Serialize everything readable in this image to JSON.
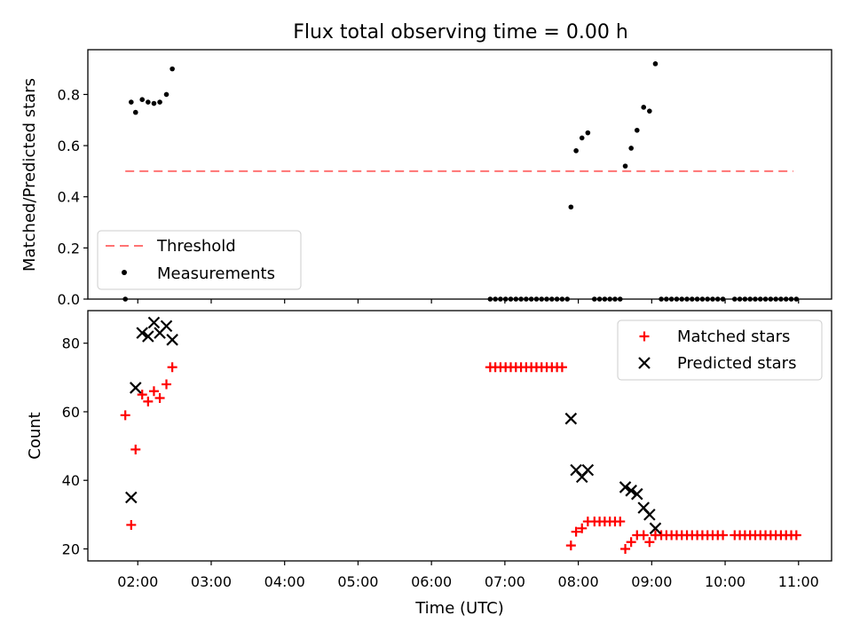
{
  "chart_data": {
    "title": "Flux total observing time = 0.00 h",
    "xlabel": "Time (UTC)",
    "x_unit": "hours (UTC)",
    "xlim": [
      1.32,
      11.45
    ],
    "xticks": [
      {
        "v": 2,
        "label": "02:00"
      },
      {
        "v": 3,
        "label": "03:00"
      },
      {
        "v": 4,
        "label": "04:00"
      },
      {
        "v": 5,
        "label": "05:00"
      },
      {
        "v": 6,
        "label": "06:00"
      },
      {
        "v": 7,
        "label": "07:00"
      },
      {
        "v": 8,
        "label": "08:00"
      },
      {
        "v": 9,
        "label": "09:00"
      },
      {
        "v": 10,
        "label": "10:00"
      },
      {
        "v": 11,
        "label": "11:00"
      }
    ],
    "panels": [
      {
        "type": "scatter",
        "ylabel": "Matched/Predicted stars",
        "ylim": [
          0,
          0.975
        ],
        "yticks": [
          {
            "v": 0,
            "label": "0.0"
          },
          {
            "v": 0.2,
            "label": "0.2"
          },
          {
            "v": 0.4,
            "label": "0.4"
          },
          {
            "v": 0.6,
            "label": "0.6"
          },
          {
            "v": 0.8,
            "label": "0.8"
          }
        ],
        "legend_position": "lower-left",
        "threshold": {
          "name": "Threshold",
          "value": 0.5,
          "x_range": [
            1.83,
            10.93
          ],
          "color": "#ff7373"
        },
        "measurements": {
          "name": "Measurements",
          "color": "#000000",
          "points": [
            [
              1.83,
              0.0
            ],
            [
              1.91,
              0.77
            ],
            [
              1.97,
              0.73
            ],
            [
              2.06,
              0.78
            ],
            [
              2.14,
              0.77
            ],
            [
              2.22,
              0.765
            ],
            [
              2.3,
              0.77
            ],
            [
              2.39,
              0.8
            ],
            [
              2.47,
              0.9
            ],
            [
              6.8,
              0.0
            ],
            [
              6.87,
              0.0
            ],
            [
              6.94,
              0.0
            ],
            [
              7.01,
              0.0
            ],
            [
              7.08,
              0.0
            ],
            [
              7.15,
              0.0
            ],
            [
              7.22,
              0.0
            ],
            [
              7.29,
              0.0
            ],
            [
              7.36,
              0.0
            ],
            [
              7.43,
              0.0
            ],
            [
              7.5,
              0.0
            ],
            [
              7.57,
              0.0
            ],
            [
              7.64,
              0.0
            ],
            [
              7.71,
              0.0
            ],
            [
              7.78,
              0.0
            ],
            [
              7.85,
              0.0
            ],
            [
              7.9,
              0.36
            ],
            [
              7.97,
              0.58
            ],
            [
              8.05,
              0.63
            ],
            [
              8.13,
              0.65
            ],
            [
              8.22,
              0.0
            ],
            [
              8.29,
              0.0
            ],
            [
              8.36,
              0.0
            ],
            [
              8.43,
              0.0
            ],
            [
              8.5,
              0.0
            ],
            [
              8.57,
              0.0
            ],
            [
              8.64,
              0.52
            ],
            [
              8.72,
              0.59
            ],
            [
              8.8,
              0.66
            ],
            [
              8.89,
              0.75
            ],
            [
              8.97,
              0.735
            ],
            [
              9.05,
              0.92
            ],
            [
              9.13,
              0.0
            ],
            [
              9.2,
              0.0
            ],
            [
              9.27,
              0.0
            ],
            [
              9.34,
              0.0
            ],
            [
              9.41,
              0.0
            ],
            [
              9.48,
              0.0
            ],
            [
              9.55,
              0.0
            ],
            [
              9.62,
              0.0
            ],
            [
              9.69,
              0.0
            ],
            [
              9.76,
              0.0
            ],
            [
              9.83,
              0.0
            ],
            [
              9.9,
              0.0
            ],
            [
              9.97,
              0.0
            ],
            [
              10.13,
              0.0
            ],
            [
              10.2,
              0.0
            ],
            [
              10.27,
              0.0
            ],
            [
              10.34,
              0.0
            ],
            [
              10.41,
              0.0
            ],
            [
              10.48,
              0.0
            ],
            [
              10.55,
              0.0
            ],
            [
              10.62,
              0.0
            ],
            [
              10.69,
              0.0
            ],
            [
              10.76,
              0.0
            ],
            [
              10.83,
              0.0
            ],
            [
              10.9,
              0.0
            ],
            [
              10.97,
              0.0
            ]
          ]
        }
      },
      {
        "type": "scatter",
        "ylabel": "Count",
        "ylim": [
          16.5,
          89.5
        ],
        "yticks": [
          {
            "v": 20,
            "label": "20"
          },
          {
            "v": 40,
            "label": "40"
          },
          {
            "v": 60,
            "label": "60"
          },
          {
            "v": 80,
            "label": "80"
          }
        ],
        "legend_position": "upper-right",
        "series": [
          {
            "name": "Matched stars",
            "marker": "+",
            "color": "#ff0000",
            "points": [
              [
                1.83,
                59
              ],
              [
                1.91,
                27
              ],
              [
                1.97,
                49
              ],
              [
                2.06,
                65
              ],
              [
                2.14,
                63
              ],
              [
                2.22,
                66
              ],
              [
                2.3,
                64
              ],
              [
                2.39,
                68
              ],
              [
                2.47,
                73
              ],
              [
                6.8,
                73
              ],
              [
                6.87,
                73
              ],
              [
                6.94,
                73
              ],
              [
                7.01,
                73
              ],
              [
                7.08,
                73
              ],
              [
                7.15,
                73
              ],
              [
                7.22,
                73
              ],
              [
                7.29,
                73
              ],
              [
                7.36,
                73
              ],
              [
                7.43,
                73
              ],
              [
                7.5,
                73
              ],
              [
                7.57,
                73
              ],
              [
                7.64,
                73
              ],
              [
                7.71,
                73
              ],
              [
                7.78,
                73
              ],
              [
                7.9,
                21
              ],
              [
                7.97,
                25
              ],
              [
                8.05,
                26
              ],
              [
                8.13,
                28
              ],
              [
                8.22,
                28
              ],
              [
                8.29,
                28
              ],
              [
                8.36,
                28
              ],
              [
                8.43,
                28
              ],
              [
                8.5,
                28
              ],
              [
                8.57,
                28
              ],
              [
                8.64,
                20
              ],
              [
                8.72,
                22
              ],
              [
                8.8,
                24
              ],
              [
                8.89,
                24
              ],
              [
                8.97,
                22
              ],
              [
                9.05,
                24
              ],
              [
                9.13,
                24
              ],
              [
                9.2,
                24
              ],
              [
                9.27,
                24
              ],
              [
                9.34,
                24
              ],
              [
                9.41,
                24
              ],
              [
                9.48,
                24
              ],
              [
                9.55,
                24
              ],
              [
                9.62,
                24
              ],
              [
                9.69,
                24
              ],
              [
                9.76,
                24
              ],
              [
                9.83,
                24
              ],
              [
                9.9,
                24
              ],
              [
                9.97,
                24
              ],
              [
                10.13,
                24
              ],
              [
                10.2,
                24
              ],
              [
                10.27,
                24
              ],
              [
                10.34,
                24
              ],
              [
                10.41,
                24
              ],
              [
                10.48,
                24
              ],
              [
                10.55,
                24
              ],
              [
                10.62,
                24
              ],
              [
                10.69,
                24
              ],
              [
                10.76,
                24
              ],
              [
                10.83,
                24
              ],
              [
                10.9,
                24
              ],
              [
                10.97,
                24
              ]
            ]
          },
          {
            "name": "Predicted stars",
            "marker": "x",
            "color": "#000000",
            "points": [
              [
                1.91,
                35
              ],
              [
                1.97,
                67
              ],
              [
                2.06,
                83
              ],
              [
                2.14,
                82
              ],
              [
                2.22,
                86
              ],
              [
                2.3,
                83
              ],
              [
                2.39,
                85
              ],
              [
                2.47,
                81
              ],
              [
                7.9,
                58
              ],
              [
                7.97,
                43
              ],
              [
                8.05,
                41
              ],
              [
                8.13,
                43
              ],
              [
                8.64,
                38
              ],
              [
                8.72,
                37
              ],
              [
                8.8,
                36
              ],
              [
                8.89,
                32
              ],
              [
                8.97,
                30
              ],
              [
                9.05,
                26
              ]
            ]
          }
        ]
      }
    ]
  }
}
